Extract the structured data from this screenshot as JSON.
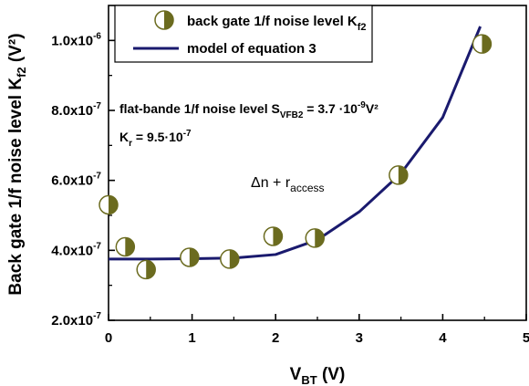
{
  "chart_data": {
    "type": "scatter",
    "xlabel": {
      "main": "V",
      "sub": "BT",
      "suffix": " (V)"
    },
    "ylabel": {
      "main": "Back gate 1/f noise level  K",
      "sub": "f2",
      "suffix": " (V²)"
    },
    "xlim": [
      0,
      5
    ],
    "ylim": [
      2e-07,
      1.1e-06
    ],
    "x_ticks": [
      0,
      1,
      2,
      3,
      4,
      5
    ],
    "x_tick_labels": [
      "0",
      "1",
      "2",
      "3",
      "4",
      "5"
    ],
    "y_ticks": [
      2e-07,
      4e-07,
      6e-07,
      8e-07,
      1e-06
    ],
    "y_tick_labels": [
      {
        "base": "2.0x10",
        "exp": "-7"
      },
      {
        "base": "4.0x10",
        "exp": "-7"
      },
      {
        "base": "6.0x10",
        "exp": "-7"
      },
      {
        "base": "8.0x10",
        "exp": "-7"
      },
      {
        "base": "1.0x10",
        "exp": "-6"
      }
    ],
    "grid": false,
    "legend_position": "top-right",
    "series": [
      {
        "name": {
          "main": "back gate 1/f noise level  K",
          "sub": "f2"
        },
        "kind": "points",
        "color": "#6b6b1f",
        "x": [
          0.0,
          0.2,
          0.45,
          0.97,
          1.45,
          1.97,
          2.47,
          3.47,
          4.47
        ],
        "y": [
          5.3e-07,
          4.1e-07,
          3.45e-07,
          3.8e-07,
          3.75e-07,
          4.4e-07,
          4.35e-07,
          6.15e-07,
          9.9e-07
        ]
      },
      {
        "name": {
          "main": "model of equation 3",
          "sub": ""
        },
        "kind": "line",
        "color": "#1a1a6e",
        "x": [
          0.0,
          0.5,
          1.0,
          1.5,
          2.0,
          2.5,
          3.0,
          3.5,
          4.0,
          4.45
        ],
        "y": [
          3.75e-07,
          3.75e-07,
          3.76e-07,
          3.78e-07,
          3.88e-07,
          4.3e-07,
          5.1e-07,
          6.2e-07,
          7.8e-07,
          1.04e-06
        ]
      }
    ],
    "annotations": {
      "flat_band": {
        "main": "flat-bande 1/f noise level S",
        "sub": "VFB2",
        "suffix": " = 3.7 ·10",
        "sup": "-9",
        "tail": "V²"
      },
      "kr": {
        "main": "K",
        "sub": "r",
        "suffix": " = 9.5·10",
        "sup": "-7"
      },
      "delta": {
        "main": "Δn + r",
        "sub": "access"
      }
    }
  }
}
